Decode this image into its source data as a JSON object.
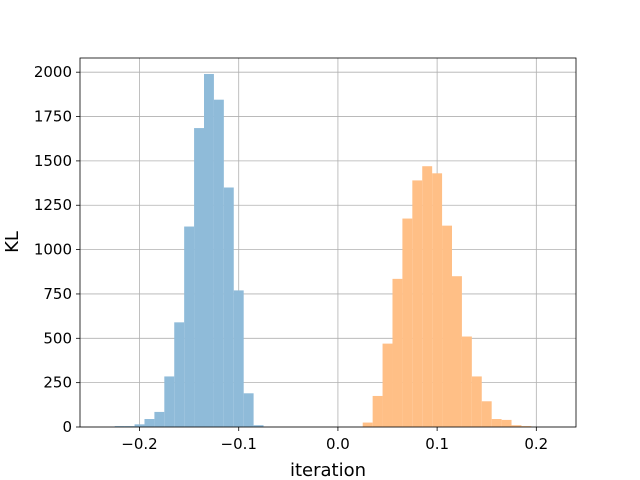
{
  "chart_data": {
    "type": "bar",
    "title": "",
    "xlabel": "iteration",
    "ylabel": "KL",
    "xlim": [
      -0.26,
      0.24
    ],
    "ylim": [
      0,
      2080
    ],
    "x_ticks": [
      -0.2,
      -0.1,
      0.0,
      0.1,
      0.2
    ],
    "x_tick_labels": [
      "−0.2",
      "−0.1",
      "0.0",
      "0.1",
      "0.2"
    ],
    "y_ticks": [
      0,
      250,
      500,
      750,
      1000,
      1250,
      1500,
      1750,
      2000
    ],
    "y_tick_labels": [
      "0",
      "250",
      "500",
      "750",
      "1000",
      "1250",
      "1500",
      "1750",
      "2000"
    ],
    "grid": true,
    "legend": "none",
    "series": [
      {
        "color": "#8fbbd9",
        "bin_edges": [
          -0.225,
          -0.215,
          -0.205,
          -0.195,
          -0.185,
          -0.175,
          -0.165,
          -0.155,
          -0.145,
          -0.135,
          -0.125,
          -0.115,
          -0.105,
          -0.095,
          -0.085,
          -0.075
        ],
        "counts": [
          5,
          5,
          15,
          45,
          85,
          285,
          590,
          1130,
          1685,
          1990,
          1845,
          1350,
          770,
          190,
          10
        ]
      },
      {
        "color": "#ffbf86",
        "bin_edges": [
          0.025,
          0.035,
          0.045,
          0.055,
          0.065,
          0.075,
          0.085,
          0.095,
          0.105,
          0.115,
          0.125,
          0.135,
          0.145,
          0.155,
          0.165,
          0.175,
          0.185,
          0.195
        ],
        "counts": [
          25,
          175,
          470,
          835,
          1175,
          1390,
          1470,
          1430,
          1135,
          850,
          510,
          285,
          145,
          45,
          40,
          10,
          5
        ]
      }
    ]
  }
}
